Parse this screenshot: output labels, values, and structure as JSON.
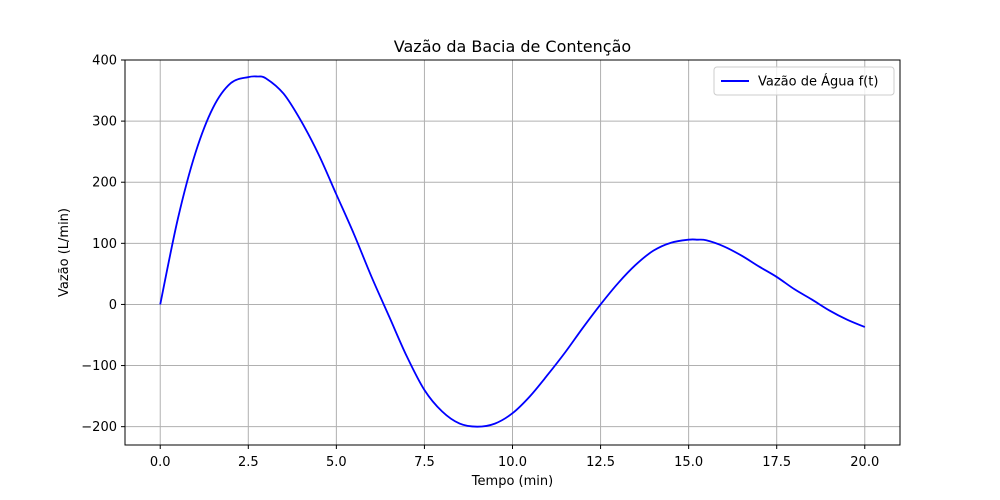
{
  "chart_data": {
    "type": "line",
    "title": "Vazão da Bacia de Contenção",
    "xlabel": "Tempo (min)",
    "ylabel": "Vazão (L/min)",
    "xlim": [
      -1.0,
      21.0
    ],
    "ylim": [
      -230,
      400
    ],
    "xticks": [
      0.0,
      2.5,
      5.0,
      7.5,
      10.0,
      12.5,
      15.0,
      17.5,
      20.0
    ],
    "xtick_labels": [
      "0.0",
      "2.5",
      "5.0",
      "7.5",
      "10.0",
      "12.5",
      "15.0",
      "17.5",
      "20.0"
    ],
    "yticks": [
      -200,
      -100,
      0,
      100,
      200,
      300,
      400
    ],
    "ytick_labels": [
      "−200",
      "−100",
      "0",
      "100",
      "200",
      "300",
      "400"
    ],
    "grid": true,
    "legend_position": "top-right",
    "series": [
      {
        "name": "Vazão de Água f(t)",
        "color": "#0000ff",
        "x": [
          0.0,
          0.5,
          1.0,
          1.5,
          2.0,
          2.5,
          2.75,
          3.0,
          3.5,
          4.0,
          4.5,
          5.0,
          5.5,
          6.0,
          6.5,
          7.0,
          7.5,
          8.0,
          8.5,
          9.0,
          9.5,
          10.0,
          10.5,
          11.0,
          11.5,
          12.0,
          12.5,
          13.0,
          13.5,
          14.0,
          14.5,
          15.0,
          15.25,
          15.5,
          16.0,
          16.5,
          17.0,
          17.5,
          18.0,
          18.5,
          19.0,
          19.5,
          20.0
        ],
        "y": [
          0,
          140,
          248,
          322,
          362,
          372,
          373,
          370,
          345,
          300,
          245,
          180,
          115,
          45,
          -20,
          -85,
          -140,
          -175,
          -195,
          -200,
          -195,
          -178,
          -150,
          -115,
          -78,
          -38,
          0,
          35,
          65,
          88,
          101,
          106,
          106,
          105,
          95,
          80,
          62,
          45,
          25,
          8,
          -10,
          -25,
          -37
        ]
      }
    ]
  }
}
